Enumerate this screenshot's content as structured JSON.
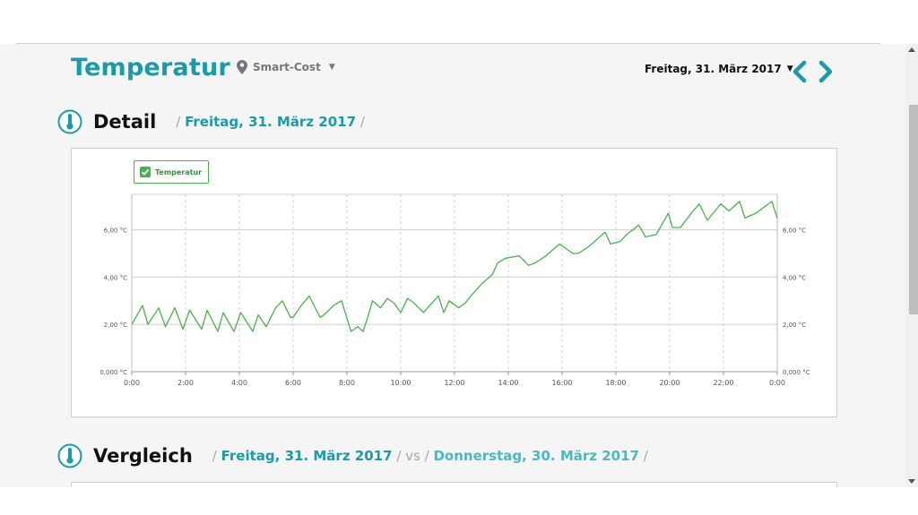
{
  "header": {
    "title": "Temperatur",
    "location_label": "Smart-Cost",
    "date_selector": "Freitag, 31. März 2017",
    "prev_icon": "chevron-left-icon",
    "next_icon": "chevron-right-icon"
  },
  "detail": {
    "heading": "Detail",
    "crumb_sep": "/",
    "crumb_date": "Freitag, 31. März 2017"
  },
  "compare": {
    "heading": "Vergleich",
    "crumb_sep": "/",
    "date_a": "Freitag, 31. März 2017",
    "vs": "vs",
    "date_b": "Donnerstag, 30. März 2017"
  },
  "colors": {
    "accent": "#1b9aa7",
    "series": "#4caf50",
    "grid": "#d0d0d0"
  },
  "chart_data": {
    "type": "line",
    "legend": "Temperatur",
    "legend_checked": true,
    "x_tick_labels": [
      "0:00",
      "2:00",
      "4:00",
      "6:00",
      "8:00",
      "10:00",
      "12:00",
      "14:00",
      "16:00",
      "18:00",
      "20:00",
      "22:00",
      "0:00"
    ],
    "y_tick_labels_left": [
      "0,000 °C",
      "2,00 °C",
      "4,00 °C",
      "6,00 °C"
    ],
    "y_tick_labels_right": [
      "0,000 °C",
      "2,00 °C",
      "4,00 °C",
      "6,00 °C"
    ],
    "x_range_hours": [
      0,
      24
    ],
    "ylim": [
      0,
      7.5
    ],
    "grid": true,
    "series": [
      {
        "name": "Temperatur",
        "x": [
          0,
          0.4,
          0.6,
          1.0,
          1.25,
          1.6,
          1.9,
          2.15,
          2.6,
          2.8,
          3.2,
          3.4,
          3.8,
          4.05,
          4.5,
          4.7,
          5.0,
          5.35,
          5.6,
          5.9,
          6.0,
          6.3,
          6.6,
          7.0,
          7.15,
          7.5,
          7.8,
          8.15,
          8.4,
          8.6,
          8.8,
          8.95,
          9.25,
          9.5,
          9.75,
          10.0,
          10.25,
          10.5,
          10.85,
          11.0,
          11.4,
          11.6,
          11.8,
          12.15,
          12.4,
          12.6,
          13.0,
          13.4,
          13.6,
          13.9,
          14.4,
          14.75,
          15.0,
          15.4,
          15.9,
          16.4,
          16.6,
          17.0,
          17.6,
          17.8,
          18.15,
          18.4,
          18.85,
          19.1,
          19.5,
          19.95,
          20.1,
          20.4,
          20.8,
          21.1,
          21.4,
          21.9,
          22.2,
          22.6,
          22.8,
          23.2,
          23.8,
          24.0
        ],
        "y": [
          2.0,
          2.8,
          2.0,
          2.7,
          1.9,
          2.7,
          1.8,
          2.6,
          1.8,
          2.6,
          1.7,
          2.5,
          1.7,
          2.5,
          1.7,
          2.4,
          1.9,
          2.7,
          3.0,
          2.3,
          2.3,
          2.8,
          3.2,
          2.3,
          2.4,
          2.8,
          3.0,
          1.7,
          1.9,
          1.7,
          2.4,
          3.0,
          2.7,
          3.1,
          2.9,
          2.5,
          3.1,
          2.9,
          2.5,
          2.7,
          3.2,
          2.5,
          3.0,
          2.7,
          2.9,
          3.2,
          3.7,
          4.1,
          4.6,
          4.8,
          4.9,
          4.5,
          4.6,
          4.9,
          5.4,
          5.0,
          5.0,
          5.3,
          5.9,
          5.4,
          5.5,
          5.8,
          6.2,
          5.7,
          5.8,
          6.7,
          6.1,
          6.1,
          6.7,
          7.1,
          6.4,
          7.1,
          6.8,
          7.2,
          6.5,
          6.7,
          7.2,
          6.5
        ]
      }
    ]
  }
}
